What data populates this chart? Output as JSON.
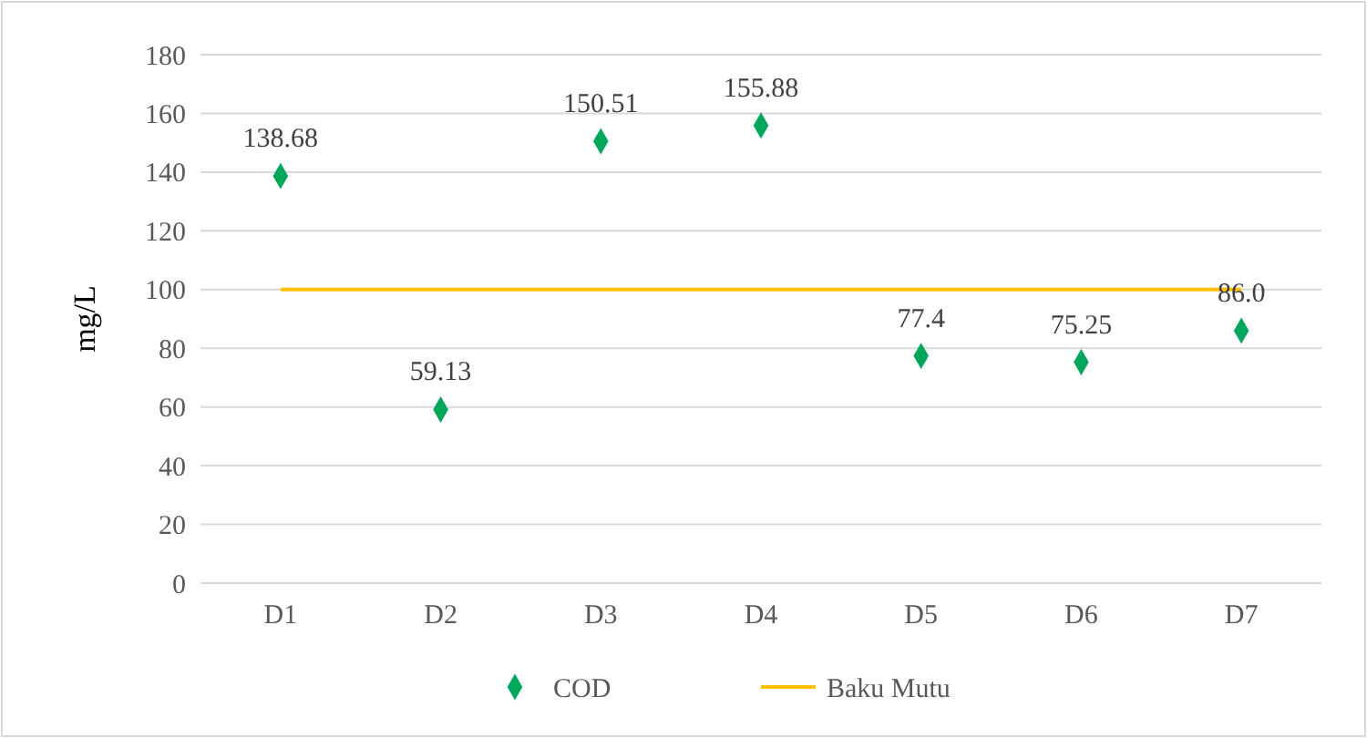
{
  "chart_data": {
    "type": "scatter",
    "ylabel": "mg/L",
    "categories": [
      "D1",
      "D2",
      "D3",
      "D4",
      "D5",
      "D6",
      "D7"
    ],
    "series": [
      {
        "name": "COD",
        "color": "#00a65a",
        "marker": "diamond",
        "values": [
          138.68,
          59.13,
          150.51,
          155.88,
          77.4,
          75.25,
          86.0
        ],
        "value_labels": [
          "138.68",
          "59.13",
          "150.51",
          "155.88",
          "77.4",
          "75.25",
          "86.0"
        ]
      },
      {
        "name": "Baku Mutu",
        "type": "line",
        "color": "#ffc000",
        "marker": "none",
        "values": [
          100,
          100,
          100,
          100,
          100,
          100,
          100
        ]
      }
    ],
    "ylim": [
      0,
      180
    ],
    "yticks": [
      0,
      20,
      40,
      60,
      80,
      100,
      120,
      140,
      160,
      180
    ],
    "grid": "y",
    "legend": "bottom"
  }
}
